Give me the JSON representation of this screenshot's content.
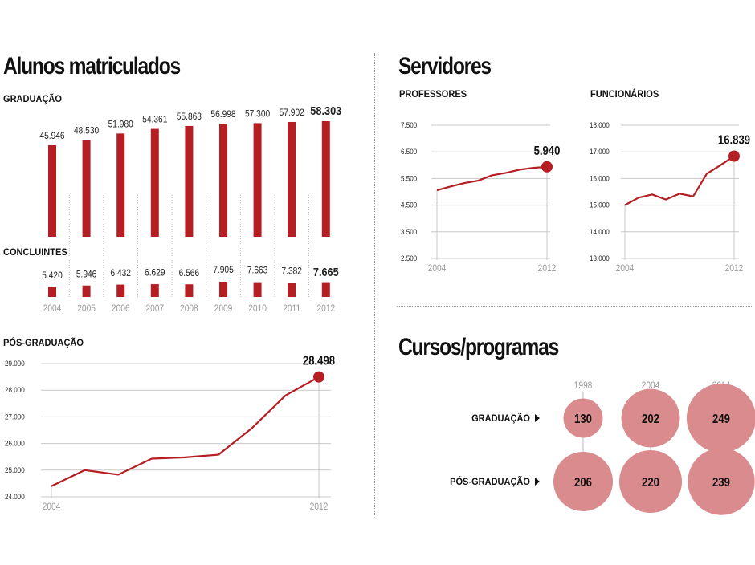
{
  "sections": {
    "alunos_title": "Alunos matriculados",
    "servidores_title": "Servidores",
    "cursos_title": "Cursos/programas"
  },
  "colors": {
    "accent": "#b51f24",
    "bubble": "#d98b8e",
    "grid": "#cccccc",
    "year": "#999999"
  },
  "chart_data": [
    {
      "id": "graduacao",
      "type": "bar",
      "title": "GRADUAÇÃO",
      "categories": [
        "2004",
        "2005",
        "2006",
        "2007",
        "2008",
        "2009",
        "2010",
        "2011",
        "2012"
      ],
      "values": [
        45946,
        48530,
        51980,
        54361,
        55863,
        56998,
        57300,
        57902,
        58303
      ],
      "labels": [
        "45.946",
        "48.530",
        "51.980",
        "54.361",
        "55.863",
        "56.998",
        "57.300",
        "57.902",
        "58.303"
      ],
      "highlight_last": true
    },
    {
      "id": "concluintes",
      "type": "bar",
      "title": "CONCLUINTES",
      "categories": [
        "2004",
        "2005",
        "2006",
        "2007",
        "2008",
        "2009",
        "2010",
        "2011",
        "2012"
      ],
      "values": [
        5420,
        5946,
        6432,
        6629,
        6566,
        7905,
        7663,
        7382,
        7665
      ],
      "labels": [
        "5.420",
        "5.946",
        "6.432",
        "6.629",
        "6.566",
        "7.905",
        "7.663",
        "7.382",
        "7.665"
      ],
      "highlight_last": true
    },
    {
      "id": "pos_graduacao",
      "type": "line",
      "title": "PÓS-GRADUAÇÃO",
      "x": [
        2004,
        2005,
        2006,
        2007,
        2008,
        2009,
        2010,
        2011,
        2012
      ],
      "values": [
        24400,
        25000,
        24830,
        25430,
        25480,
        25580,
        26580,
        27800,
        28498
      ],
      "ylim": [
        24000,
        29000
      ],
      "yticks": [
        "24.000",
        "25.000",
        "26.000",
        "27.000",
        "28.000",
        "29.000"
      ],
      "xtick_labels": [
        "2004",
        "2012"
      ],
      "end_label": "28.498",
      "grid": true
    },
    {
      "id": "professores",
      "type": "line",
      "title": "PROFESSORES",
      "x": [
        2004,
        2005,
        2006,
        2007,
        2008,
        2009,
        2010,
        2011,
        2012
      ],
      "values": [
        5060,
        5200,
        5330,
        5420,
        5620,
        5710,
        5830,
        5900,
        5940
      ],
      "ylim": [
        2500,
        7500
      ],
      "yticks": [
        "2.500",
        "3.500",
        "4.500",
        "5.500",
        "6.500",
        "7.500"
      ],
      "xtick_labels": [
        "2004",
        "2012"
      ],
      "end_label": "5.940",
      "grid": true
    },
    {
      "id": "funcionarios",
      "type": "line",
      "title": "FUNCIONÁRIOS",
      "x": [
        2004,
        2005,
        2006,
        2007,
        2008,
        2009,
        2010,
        2011,
        2012
      ],
      "values": [
        15000,
        15280,
        15400,
        15210,
        15430,
        15330,
        16180,
        16500,
        16839
      ],
      "ylim": [
        13000,
        18000
      ],
      "yticks": [
        "13.000",
        "14.000",
        "15.000",
        "16.000",
        "17.000",
        "18.000"
      ],
      "xtick_labels": [
        "2004",
        "2012"
      ],
      "end_label": "16.839",
      "grid": true
    },
    {
      "id": "cursos",
      "type": "scatter",
      "title": "Cursos/programas",
      "years": [
        "1998",
        "2004",
        "2014"
      ],
      "rows": [
        {
          "label": "GRADUAÇÃO",
          "values": [
            130,
            202,
            249
          ]
        },
        {
          "label": "PÓS-GRADUAÇÃO",
          "values": [
            206,
            220,
            239
          ]
        }
      ]
    }
  ]
}
